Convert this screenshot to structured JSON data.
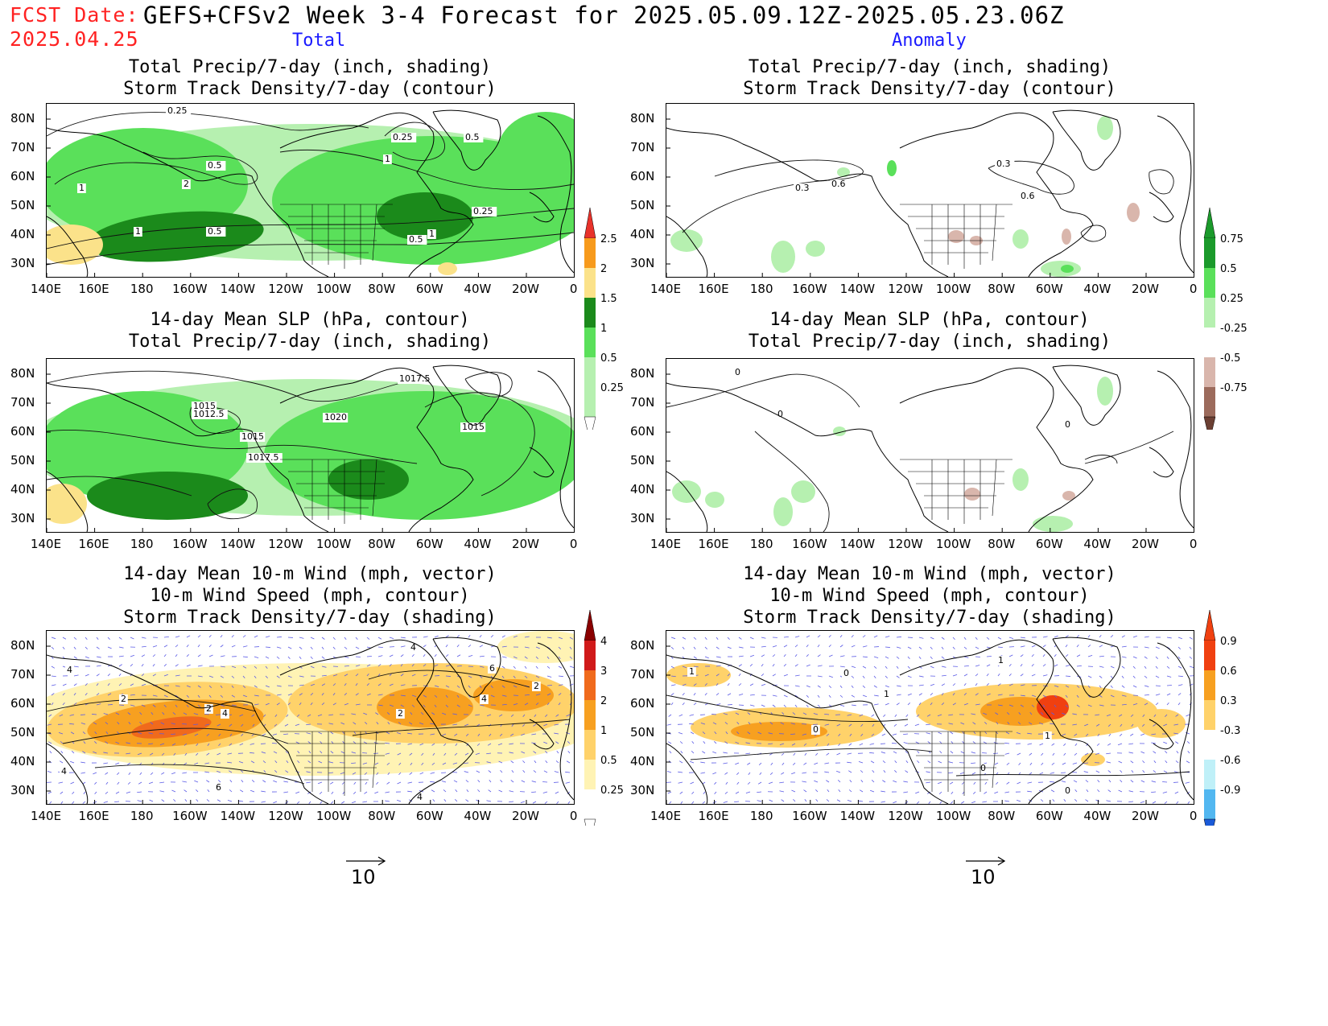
{
  "header": {
    "fcst_label": "FCST Date:",
    "fcst_date": "2025.04.25",
    "title": "GEFS+CFSv2 Week 3-4 Forecast for 2025.05.09.12Z-2025.05.23.06Z",
    "col_left": "Total",
    "col_right": "Anomaly"
  },
  "axes": {
    "lat_labels": [
      "80N",
      "70N",
      "60N",
      "50N",
      "40N",
      "30N"
    ],
    "lon_labels": [
      "140E",
      "160E",
      "180",
      "160W",
      "140W",
      "120W",
      "100W",
      "80W",
      "60W",
      "40W",
      "20W",
      "0"
    ]
  },
  "panels": {
    "r1_left": {
      "title1": "Total Precip/7-day (inch, shading)",
      "title2": "Storm Track Density/7-day (contour)",
      "contour_labels": [
        "0.25",
        "0.25",
        "0.5",
        "0.5",
        "1",
        "2",
        "1",
        "1",
        "0.25",
        "0.5",
        "1",
        "0.5"
      ]
    },
    "r1_right": {
      "title1": "Total Precip/7-day (inch, shading)",
      "title2": "Storm Track Density/7-day (contour)",
      "contour_labels": [
        "0.3",
        "0.6",
        "0.3",
        "0.6"
      ]
    },
    "r2_left": {
      "title1": "14-day Mean SLP (hPa, contour)",
      "title2": "Total Precip/7-day (inch, shading)",
      "contour_labels": [
        "1017.5",
        "1015",
        "1012.5",
        "1020",
        "1015",
        "1017.5",
        "1015"
      ]
    },
    "r2_right": {
      "title1": "14-day Mean SLP (hPa, contour)",
      "title2": "Total Precip/7-day (inch, shading)",
      "contour_labels": [
        "0",
        "0",
        "0"
      ]
    },
    "r3_left": {
      "title1": "14-day Mean 10-m Wind (mph, vector)",
      "title2": "10-m Wind Speed (mph, contour)",
      "title3": "Storm Track Density/7-day (shading)",
      "contour_labels": [
        "4",
        "2",
        "2",
        "4",
        "4",
        "6",
        "4",
        "2",
        "2",
        "4",
        "6",
        "4"
      ]
    },
    "r3_right": {
      "title1": "14-day Mean 10-m Wind (mph, vector)",
      "title2": "10-m Wind Speed (mph, contour)",
      "title3": "Storm Track Density/7-day (shading)",
      "contour_labels": [
        "1",
        "0",
        "1",
        "0",
        "0",
        "1",
        "0",
        "1"
      ]
    }
  },
  "colorbars": {
    "precip_total": {
      "labels": [
        "2.5",
        "2",
        "1.5",
        "1",
        "0.5",
        "0.25"
      ],
      "colors": [
        "#e8322a",
        "#f79a1c",
        "#fbe28a",
        "#1b8a1b",
        "#5ae05a",
        "#b6f0b0"
      ]
    },
    "precip_anom": {
      "labels": [
        "0.75",
        "0.5",
        "0.25",
        "-0.25",
        "-0.5",
        "-0.75"
      ],
      "colors": [
        "#1b9a2b",
        "#5ae05a",
        "#b6f0b0",
        "#ffffff",
        "#d9b6ac",
        "#9c6b5c",
        "#6b3f33"
      ]
    },
    "storm_total": {
      "labels": [
        "4",
        "3",
        "2",
        "1",
        "0.5",
        "0.25"
      ],
      "colors": [
        "#8a0000",
        "#d01a1a",
        "#f06a1c",
        "#f7a020",
        "#ffd26a",
        "#fff3b4"
      ]
    },
    "storm_anom": {
      "labels": [
        "0.9",
        "0.6",
        "0.3",
        "-0.3",
        "-0.6",
        "-0.9"
      ],
      "colors": [
        "#f04010",
        "#f7a020",
        "#ffd26a",
        "#ffffff",
        "#bff0f8",
        "#52b7f0",
        "#1a5ad8"
      ]
    }
  },
  "vector_ref": {
    "left": "10",
    "right": "10"
  },
  "colors": {
    "title_red": "#ff2222",
    "title_blue": "#1a1aff",
    "vector": "#5a5ae6"
  }
}
